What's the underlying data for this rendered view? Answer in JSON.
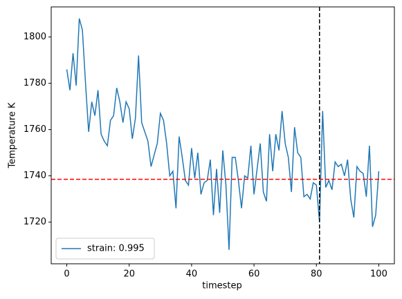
{
  "chart_data": {
    "type": "line",
    "x_label": "timestep",
    "y_label": "Temperature K",
    "x": [
      0,
      1,
      2,
      3,
      4,
      5,
      6,
      7,
      8,
      9,
      10,
      11,
      12,
      13,
      14,
      15,
      16,
      17,
      18,
      19,
      20,
      21,
      22,
      23,
      24,
      25,
      26,
      27,
      28,
      29,
      30,
      31,
      32,
      33,
      34,
      35,
      36,
      37,
      38,
      39,
      40,
      41,
      42,
      43,
      44,
      45,
      46,
      47,
      48,
      49,
      50,
      51,
      52,
      53,
      54,
      55,
      56,
      57,
      58,
      59,
      60,
      61,
      62,
      63,
      64,
      65,
      66,
      67,
      68,
      69,
      70,
      71,
      72,
      73,
      74,
      75,
      76,
      77,
      78,
      79,
      80,
      81,
      82,
      83,
      84,
      85,
      86,
      87,
      88,
      89,
      90,
      91,
      92,
      93,
      94,
      95,
      96,
      97,
      98,
      99,
      100
    ],
    "series": [
      {
        "name": "strain: 0.995",
        "color": "#1f77b4",
        "values": [
          1786,
          1777,
          1793,
          1779,
          1808,
          1803,
          1780,
          1759,
          1772,
          1766,
          1777,
          1758,
          1755,
          1753,
          1764,
          1766,
          1778,
          1772,
          1763,
          1772,
          1769,
          1756,
          1765,
          1792,
          1763,
          1759,
          1755,
          1744,
          1749,
          1754,
          1767,
          1764,
          1754,
          1740,
          1742,
          1726,
          1757,
          1748,
          1738,
          1736,
          1752,
          1739,
          1750,
          1732,
          1737,
          1738,
          1747,
          1723,
          1743,
          1724,
          1751,
          1736,
          1708,
          1748,
          1748,
          1738,
          1726,
          1740,
          1739,
          1753,
          1732,
          1743,
          1754,
          1733,
          1729,
          1758,
          1742,
          1758,
          1751,
          1768,
          1754,
          1748,
          1733,
          1761,
          1750,
          1748,
          1731,
          1732,
          1730,
          1737,
          1736,
          1720,
          1768,
          1735,
          1738,
          1734,
          1746,
          1744,
          1745,
          1740,
          1747,
          1730,
          1722,
          1744,
          1742,
          1741,
          1731,
          1753,
          1718,
          1723,
          1742
        ]
      }
    ],
    "hline": {
      "value": 1738.5,
      "color": "#ff0000"
    },
    "vline": {
      "value": 81,
      "color": "#000000"
    },
    "xlim": [
      -5,
      105
    ],
    "ylim": [
      1702,
      1813
    ],
    "xticks": [
      0,
      20,
      40,
      60,
      80,
      100
    ],
    "yticks": [
      1720,
      1740,
      1760,
      1780,
      1800
    ],
    "legend": "lower left"
  }
}
